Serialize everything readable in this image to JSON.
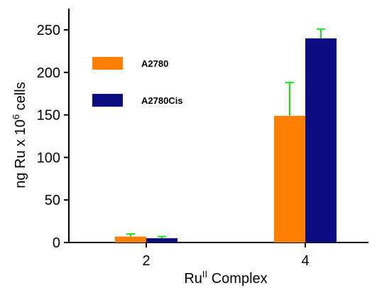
{
  "chart_data": {
    "type": "bar",
    "categories": [
      "2",
      "4"
    ],
    "series": [
      {
        "name": "A2780",
        "values": [
          7,
          149
        ],
        "errors": [
          3,
          39
        ]
      },
      {
        "name": "A2780Cis",
        "values": [
          5,
          240
        ],
        "errors": [
          2,
          11
        ]
      }
    ],
    "xlabel": {
      "main": "Ru",
      "sup": "II",
      "rest": " Complex"
    },
    "ylabel": {
      "main": "ng Ru x 10",
      "sup": "6",
      "rest": " cells"
    },
    "ylim": [
      0,
      250
    ],
    "yticks": [
      0,
      50,
      100,
      150,
      200,
      250
    ],
    "grid": false,
    "legend_position": "top-left",
    "colors": {
      "A2780": "#ff8000",
      "A2780Cis": "#0c0c80",
      "error_bar": "#19e619"
    }
  }
}
